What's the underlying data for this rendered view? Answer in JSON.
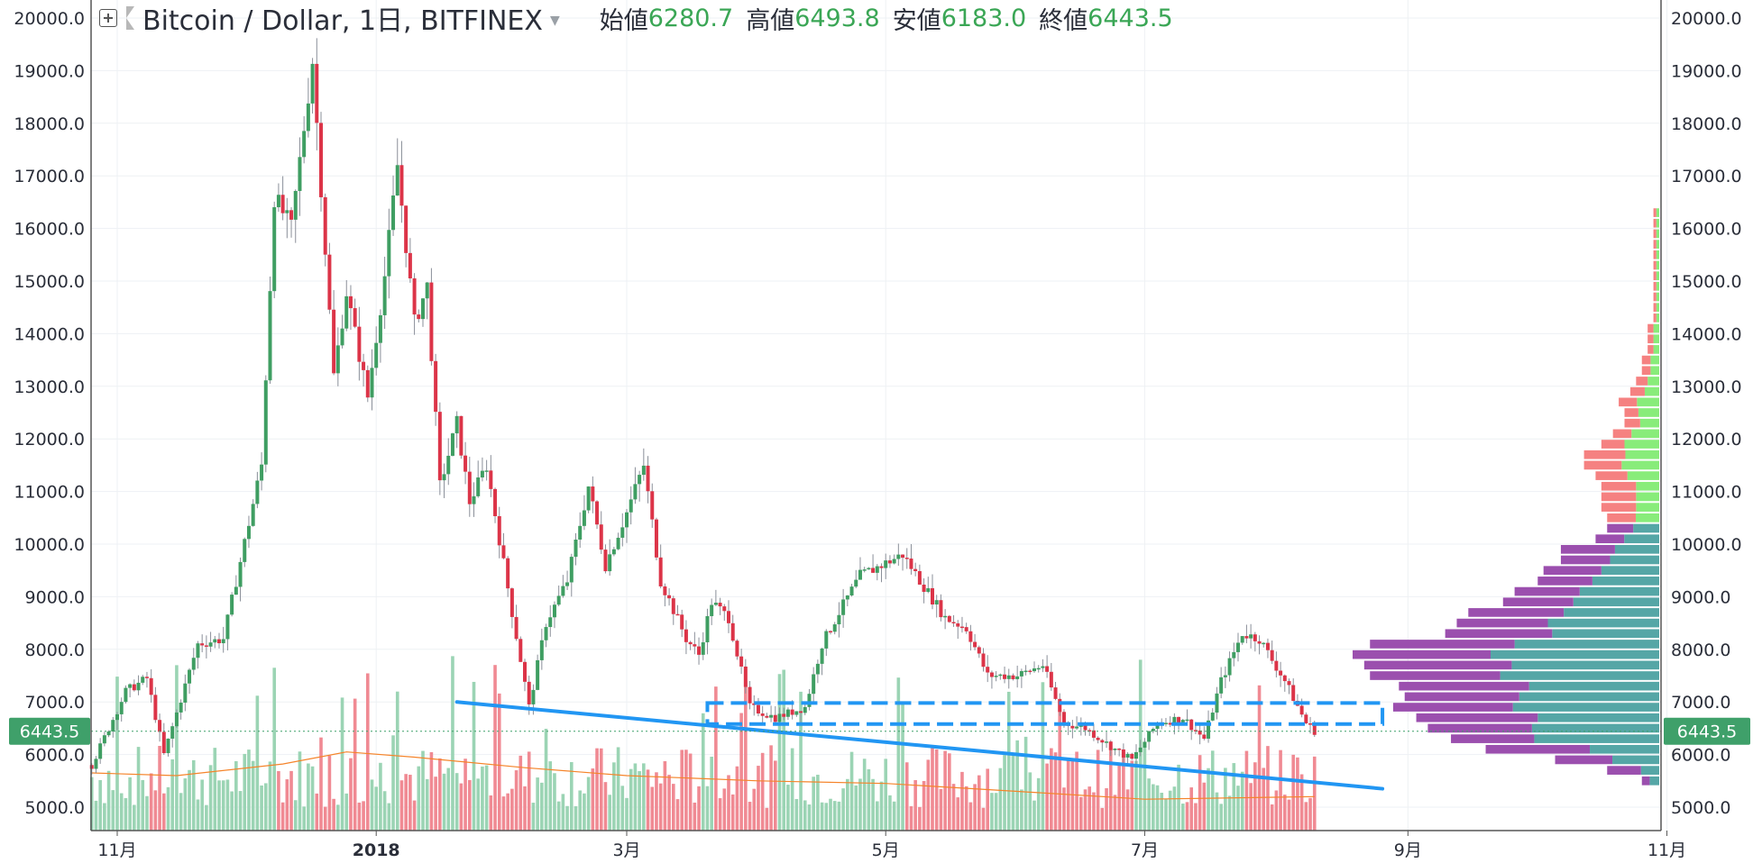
{
  "header": {
    "symbol": "Bitcoin / Dollar, 1日, BITFINEX",
    "ohlc": [
      {
        "label": "始値",
        "value": "6280.7"
      },
      {
        "label": "高値",
        "value": "6493.8"
      },
      {
        "label": "安値",
        "value": "6183.0"
      },
      {
        "label": "終値",
        "value": "6443.5"
      }
    ]
  },
  "colors": {
    "up": "#3f9e62",
    "down": "#dc3448",
    "volume_up": "#9bd4b4",
    "volume_down": "#f08a93",
    "sma": "#f5842a",
    "trendline": "#2196f3",
    "price_label": "#3fa06a",
    "vp_up_upper": "#88ec7a",
    "vp_down_upper": "#f58181",
    "vp_up_lower": "#55a6a6",
    "vp_down_lower": "#9b4fae"
  },
  "chart_data": {
    "type": "candlestick",
    "title": "Bitcoin / Dollar, 1日, BITFINEX",
    "y_range": [
      4600,
      20300
    ],
    "y_ticks": [
      "20000.0",
      "19000.0",
      "18000.0",
      "17000.0",
      "16000.0",
      "15000.0",
      "14000.0",
      "13000.0",
      "12000.0",
      "11000.0",
      "10000.0",
      "9000.0",
      "8000.0",
      "7000.0",
      "6000.0",
      "5000.0"
    ],
    "x_ticks": [
      {
        "label": "11月",
        "date": "2017-11-01",
        "bold": false
      },
      {
        "label": "2018",
        "date": "2018-01-01",
        "bold": true
      },
      {
        "label": "3月",
        "date": "2018-03-01",
        "bold": false
      },
      {
        "label": "5月",
        "date": "2018-05-01",
        "bold": false
      },
      {
        "label": "7月",
        "date": "2018-07-01",
        "bold": false
      },
      {
        "label": "9月",
        "date": "2018-09-01",
        "bold": false
      },
      {
        "label": "11月",
        "date": "2018-11-01",
        "bold": false
      }
    ],
    "x_range": [
      "2017-10-25",
      "2018-11-05"
    ],
    "last_price": "6443.5",
    "last_price_value": 6443.5,
    "price_path": [
      [
        "2017-10-26",
        5800
      ],
      [
        "2017-11-03",
        7200
      ],
      [
        "2017-11-08",
        7450
      ],
      [
        "2017-11-12",
        6000
      ],
      [
        "2017-11-20",
        8100
      ],
      [
        "2017-11-26",
        8200
      ],
      [
        "2017-12-05",
        11500
      ],
      [
        "2017-12-08",
        16600
      ],
      [
        "2017-12-12",
        16000
      ],
      [
        "2017-12-17",
        19200
      ],
      [
        "2017-12-22",
        13200
      ],
      [
        "2017-12-25",
        14800
      ],
      [
        "2017-12-30",
        12800
      ],
      [
        "2018-01-03",
        15100
      ],
      [
        "2018-01-06",
        17200
      ],
      [
        "2018-01-10",
        14200
      ],
      [
        "2018-01-13",
        14900
      ],
      [
        "2018-01-16",
        11100
      ],
      [
        "2018-01-20",
        12300
      ],
      [
        "2018-01-23",
        10800
      ],
      [
        "2018-01-27",
        11500
      ],
      [
        "2018-02-02",
        8700
      ],
      [
        "2018-02-06",
        6900
      ],
      [
        "2018-02-10",
        8500
      ],
      [
        "2018-02-15",
        9300
      ],
      [
        "2018-02-20",
        11100
      ],
      [
        "2018-02-24",
        9600
      ],
      [
        "2018-03-01",
        10600
      ],
      [
        "2018-03-05",
        11500
      ],
      [
        "2018-03-09",
        9300
      ],
      [
        "2018-03-15",
        8200
      ],
      [
        "2018-03-18",
        7900
      ],
      [
        "2018-03-21",
        8900
      ],
      [
        "2018-03-25",
        8600
      ],
      [
        "2018-03-30",
        6900
      ],
      [
        "2018-04-05",
        6700
      ],
      [
        "2018-04-12",
        6900
      ],
      [
        "2018-04-16",
        8100
      ],
      [
        "2018-04-20",
        8700
      ],
      [
        "2018-04-25",
        9400
      ],
      [
        "2018-05-05",
        9800
      ],
      [
        "2018-05-10",
        9200
      ],
      [
        "2018-05-15",
        8600
      ],
      [
        "2018-05-20",
        8400
      ],
      [
        "2018-05-25",
        7500
      ],
      [
        "2018-06-01",
        7500
      ],
      [
        "2018-06-07",
        7700
      ],
      [
        "2018-06-12",
        6600
      ],
      [
        "2018-06-17",
        6500
      ],
      [
        "2018-06-24",
        6100
      ],
      [
        "2018-06-28",
        5900
      ],
      [
        "2018-07-04",
        6600
      ],
      [
        "2018-07-10",
        6700
      ],
      [
        "2018-07-15",
        6300
      ],
      [
        "2018-07-19",
        7400
      ],
      [
        "2018-07-24",
        8300
      ],
      [
        "2018-07-28",
        8200
      ],
      [
        "2018-08-03",
        7400
      ],
      [
        "2018-08-08",
        6600
      ],
      [
        "2018-08-10",
        6450
      ]
    ],
    "trendline": {
      "start": [
        "2018-01-20",
        7000
      ],
      "end": [
        "2018-08-26",
        5350
      ]
    },
    "support_zone": {
      "start": "2018-03-20",
      "end": "2018-08-26",
      "low": 6580,
      "high": 6980
    },
    "sma_path": [
      [
        "2017-10-26",
        5650
      ],
      [
        "2017-11-15",
        5600
      ],
      [
        "2017-12-10",
        5820
      ],
      [
        "2017-12-25",
        6050
      ],
      [
        "2018-01-10",
        5950
      ],
      [
        "2018-02-05",
        5750
      ],
      [
        "2018-03-01",
        5600
      ],
      [
        "2018-04-01",
        5500
      ],
      [
        "2018-05-01",
        5450
      ],
      [
        "2018-06-01",
        5300
      ],
      [
        "2018-07-01",
        5150
      ],
      [
        "2018-08-10",
        5200
      ]
    ],
    "volume_profile": {
      "start_price": 5400,
      "bin_size": 200,
      "volumes": [
        3,
        9,
        18,
        30,
        36,
        40,
        42,
        46,
        44,
        45,
        50,
        51,
        53,
        50,
        37,
        35,
        33,
        27,
        25,
        21,
        20,
        17,
        17,
        11,
        9,
        9,
        10,
        10,
        10,
        11,
        13,
        13,
        10,
        8,
        6,
        6,
        7,
        5,
        4,
        3,
        3,
        2,
        2,
        2,
        1,
        1,
        1,
        1,
        1,
        1,
        1,
        1,
        1,
        1,
        1,
        0,
        0,
        0,
        0,
        0,
        0,
        0,
        0,
        0,
        0,
        0,
        0,
        0,
        0,
        0,
        0,
        0,
        0
      ],
      "up_share": [
        0.55,
        0.35,
        0.45,
        0.4,
        0.6,
        0.55,
        0.5,
        0.55,
        0.55,
        0.5,
        0.55,
        0.5,
        0.55,
        0.5,
        0.5,
        0.55,
        0.5,
        0.55,
        0.55,
        0.55,
        0.5,
        0.5,
        0.45,
        0.55,
        0.5,
        0.45,
        0.4,
        0.4,
        0.4,
        0.5,
        0.5,
        0.45,
        0.6,
        0.6,
        0.55,
        0.6,
        0.55,
        0.5,
        0.5,
        0.5,
        0.5,
        0.5,
        0.5,
        0.5,
        0.5,
        0.5,
        0.5,
        0.5,
        0.5,
        0.5,
        0.5,
        0.5,
        0.5,
        0.5,
        0.5,
        0.5,
        0.5,
        0.5,
        0.5,
        0.5,
        0.5,
        0.5,
        0.5,
        0.5,
        0.5,
        0.5,
        0.5,
        0.5,
        0.5,
        0.5,
        0.5,
        0.5,
        0.5
      ],
      "split_price": 10400
    }
  }
}
